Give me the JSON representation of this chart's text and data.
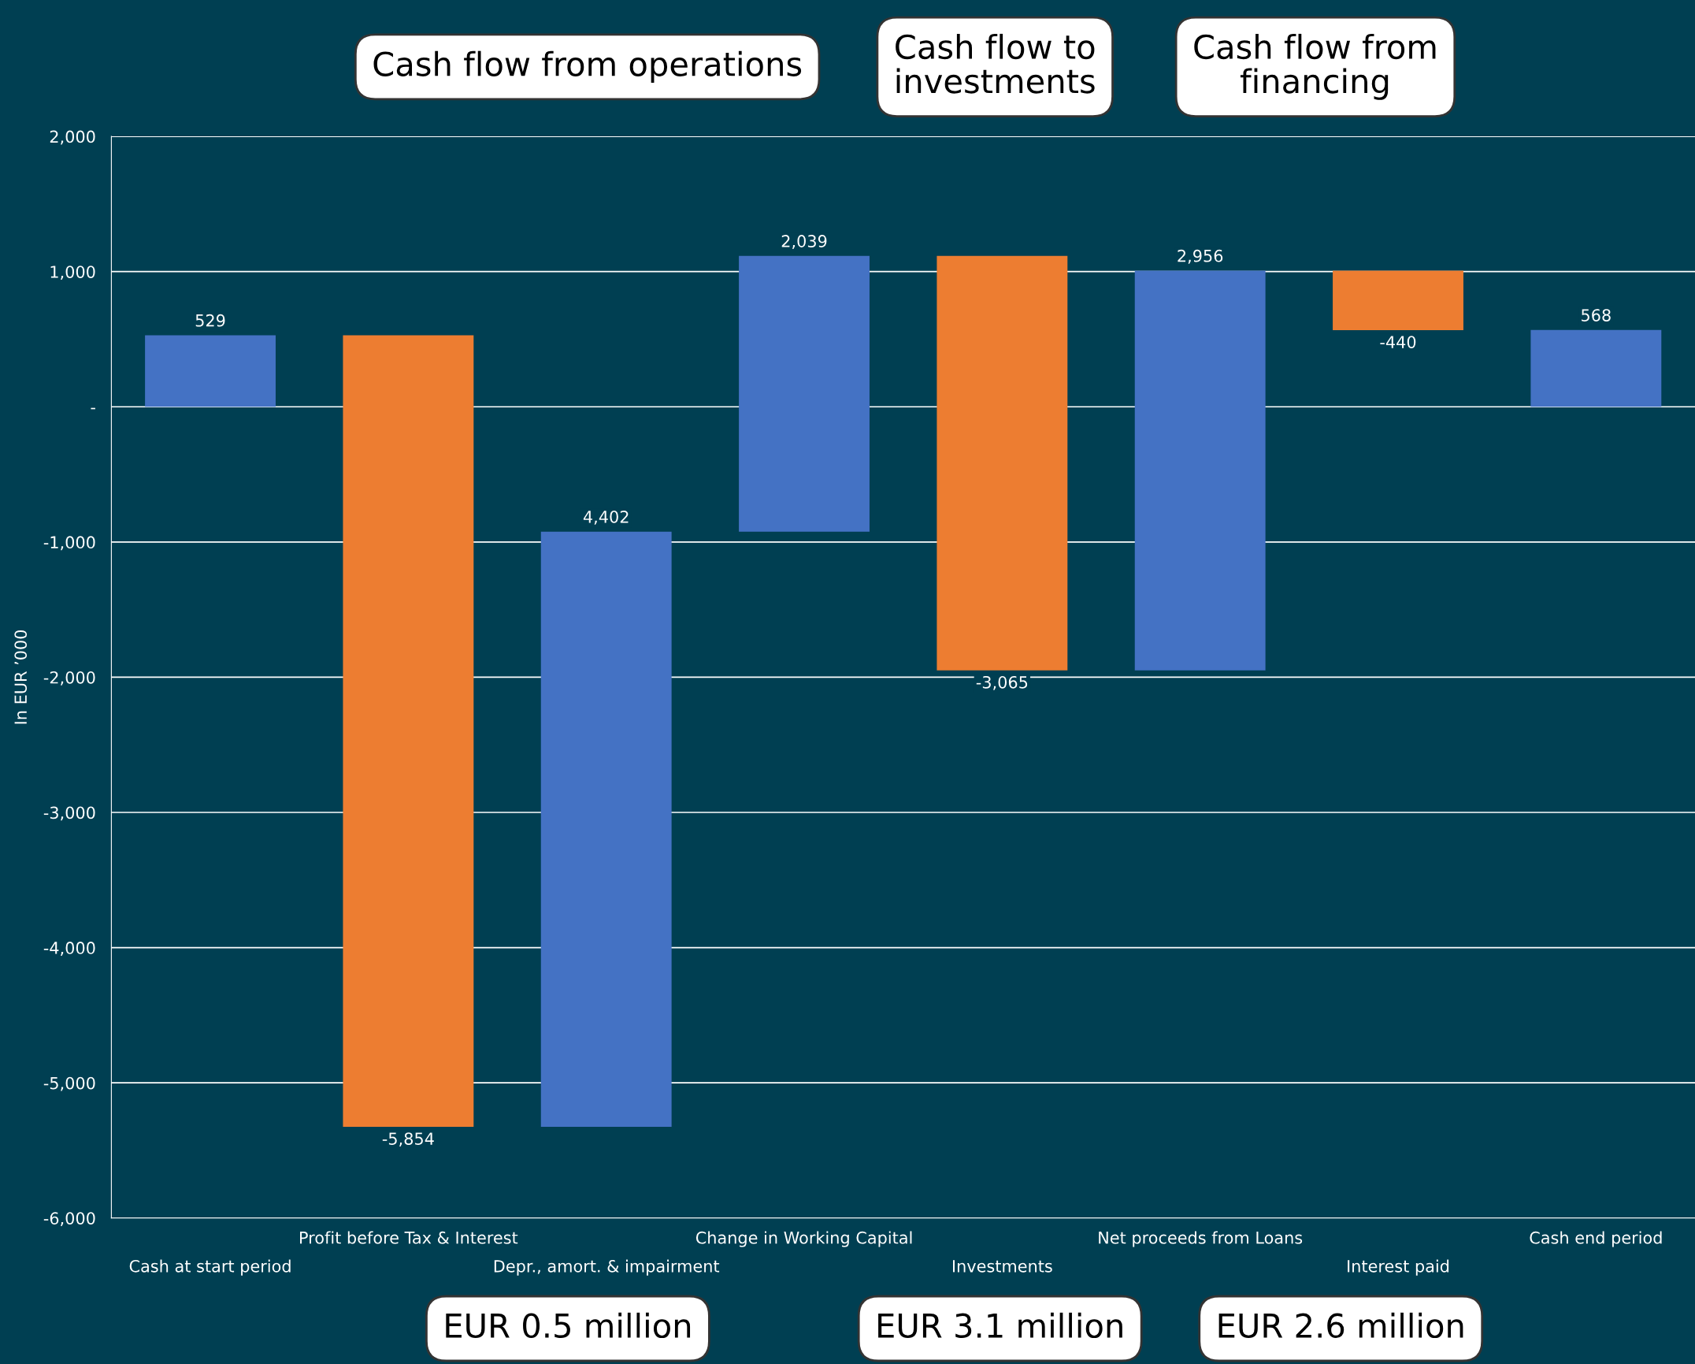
{
  "chart_data": {
    "type": "bar",
    "ylabel": "In EUR ’000",
    "categories": [
      "Cash at start period",
      "Profit before Tax & Interest",
      "Depr., amort. & impairment",
      "Change in Working Capital",
      "Investments",
      "Net proceeds from Loans",
      "Interest paid",
      "Cash end period"
    ],
    "values": [
      529,
      -5854,
      4402,
      2039,
      -3065,
      2956,
      -440,
      568
    ],
    "base": [
      0,
      529,
      -5325,
      -923,
      1116,
      -1949,
      1007,
      0
    ],
    "colors": [
      "#4472c4",
      "#ed7d31",
      "#4472c4",
      "#4472c4",
      "#ed7d31",
      "#4472c4",
      "#ed7d31",
      "#4472c4"
    ],
    "ylim": [
      -6000,
      2000
    ],
    "yticks": [
      {
        "value": -6000,
        "label": "-6,000"
      },
      {
        "value": -5000,
        "label": "-5,000"
      },
      {
        "value": -4000,
        "label": "-4,000"
      },
      {
        "value": -3000,
        "label": "-3,000"
      },
      {
        "value": -2000,
        "label": "-2,000"
      },
      {
        "value": -1000,
        "label": "-1,000"
      },
      {
        "value": 0,
        "label": "-"
      },
      {
        "value": 1000,
        "label": "1,000"
      },
      {
        "value": 2000,
        "label": "2,000"
      }
    ],
    "value_labels": [
      "529",
      "-5,854",
      "4,402",
      "2,039",
      "-3,065",
      "2,956",
      "-440",
      "568"
    ],
    "grid": "y",
    "legend": false,
    "annotations": [
      "Cash flow from operations",
      "Cash flow to\ninvestments",
      "Cash flow from\nfinancing",
      "EUR 0.5 million",
      "EUR 3.1 million",
      "EUR 2.6 million"
    ]
  }
}
